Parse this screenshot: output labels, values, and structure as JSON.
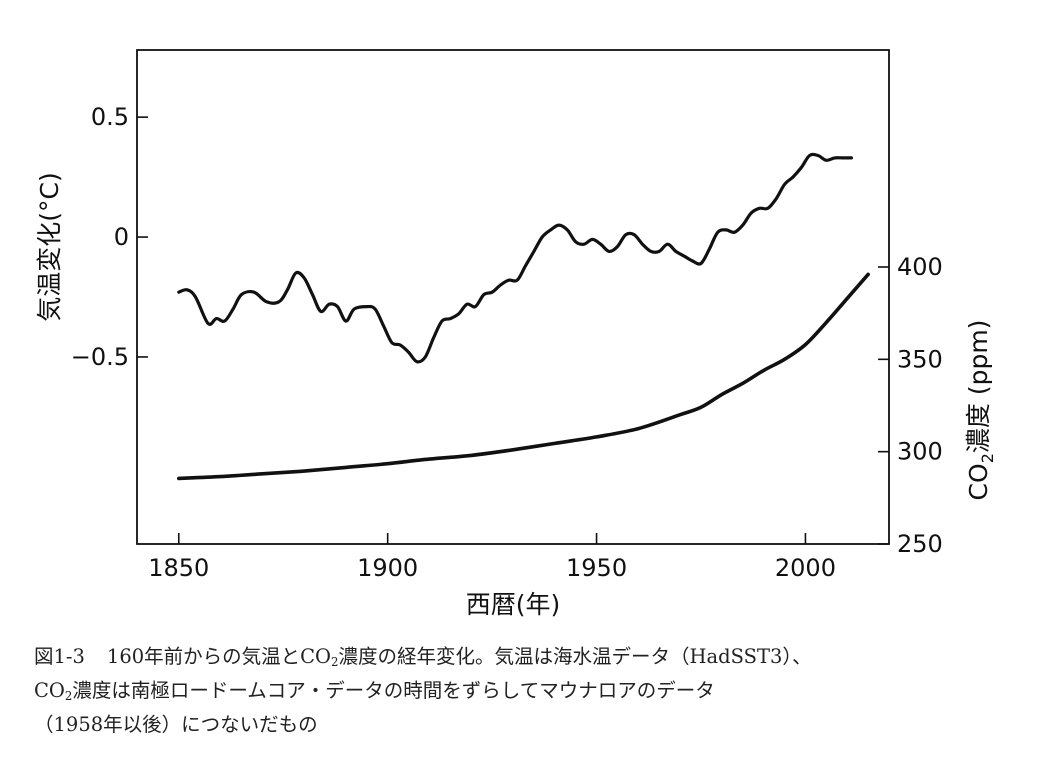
{
  "chart_data": {
    "type": "line",
    "x_axis": {
      "label": "西暦(年)",
      "range": [
        1840,
        2020
      ],
      "ticks": [
        1850,
        1900,
        1950,
        2000
      ],
      "tick_labels": [
        "1850",
        "1900",
        "1950",
        "2000"
      ]
    },
    "y_axis_left": {
      "label": "気温変化(°C)",
      "range": [
        -1.28,
        0.78
      ],
      "ticks": [
        0.5,
        0,
        -0.5
      ],
      "tick_labels": [
        "0.5",
        "0",
        "−0.5"
      ]
    },
    "y_axis_right": {
      "label_main": "CO",
      "label_sub": "2",
      "label_rest": "濃度 (ppm)",
      "range": [
        250,
        400
      ],
      "ticks": [
        400,
        350,
        300,
        250
      ],
      "tick_labels": [
        "400",
        "350",
        "300",
        "250"
      ],
      "scale": "linear, 250 at plot bottom, 400 at y≈-0.11 on left axis"
    },
    "grid": false,
    "legend": "none",
    "series": [
      {
        "axis": "left",
        "color": "#111111",
        "x": [
          1850,
          1852,
          1854,
          1857,
          1859,
          1861,
          1863,
          1865,
          1868,
          1871,
          1874,
          1876,
          1878,
          1880,
          1882,
          1884,
          1886,
          1888,
          1890,
          1892,
          1895,
          1897,
          1899,
          1901,
          1903,
          1905,
          1907,
          1909,
          1911,
          1913,
          1915,
          1917,
          1919,
          1921,
          1923,
          1925,
          1927,
          1929,
          1931,
          1933,
          1935,
          1937,
          1939,
          1941,
          1943,
          1945,
          1947,
          1949,
          1951,
          1953,
          1955,
          1957,
          1959,
          1961,
          1963,
          1965,
          1967,
          1969,
          1971,
          1973,
          1975,
          1977,
          1979,
          1981,
          1983,
          1985,
          1987,
          1989,
          1991,
          1993,
          1995,
          1997,
          1999,
          2001,
          2003,
          2005,
          2007,
          2009,
          2011
        ],
        "values": [
          -0.23,
          -0.22,
          -0.25,
          -0.36,
          -0.34,
          -0.35,
          -0.3,
          -0.24,
          -0.23,
          -0.27,
          -0.27,
          -0.22,
          -0.15,
          -0.17,
          -0.24,
          -0.31,
          -0.28,
          -0.29,
          -0.35,
          -0.3,
          -0.29,
          -0.3,
          -0.37,
          -0.44,
          -0.45,
          -0.48,
          -0.52,
          -0.5,
          -0.42,
          -0.35,
          -0.34,
          -0.32,
          -0.28,
          -0.29,
          -0.24,
          -0.23,
          -0.2,
          -0.18,
          -0.18,
          -0.12,
          -0.06,
          0.0,
          0.03,
          0.05,
          0.03,
          -0.02,
          -0.03,
          -0.01,
          -0.03,
          -0.06,
          -0.04,
          0.01,
          0.01,
          -0.03,
          -0.06,
          -0.06,
          -0.03,
          -0.06,
          -0.08,
          -0.1,
          -0.11,
          -0.05,
          0.02,
          0.03,
          0.02,
          0.05,
          0.1,
          0.12,
          0.12,
          0.16,
          0.22,
          0.25,
          0.29,
          0.34,
          0.34,
          0.32,
          0.33,
          0.33,
          0.33
        ]
      },
      {
        "axis": "right",
        "color": "#111111",
        "x": [
          1850,
          1860,
          1870,
          1880,
          1890,
          1900,
          1910,
          1920,
          1930,
          1940,
          1950,
          1960,
          1970,
          1975,
          1980,
          1985,
          1990,
          1995,
          2000,
          2005,
          2010,
          2015
        ],
        "values": [
          285.5,
          286.5,
          288,
          289.5,
          291.5,
          293.5,
          296,
          298,
          301,
          304.5,
          308,
          312.5,
          320,
          324,
          331,
          337,
          344,
          350,
          358,
          370,
          383,
          396
        ]
      }
    ]
  },
  "caption": {
    "line1_num": "図1-3",
    "line1_a": "160年前からの気温とCO",
    "line1_sub": "2",
    "line1_b": "濃度の経年変化。気温は海水温データ（HadSST3）、",
    "line2_a": "CO",
    "line2_sub": "2",
    "line2_b": "濃度は南極ロードームコア・データの時間をずらしてマウナロアのデータ",
    "line3": "（1958年以後）につないだもの"
  }
}
